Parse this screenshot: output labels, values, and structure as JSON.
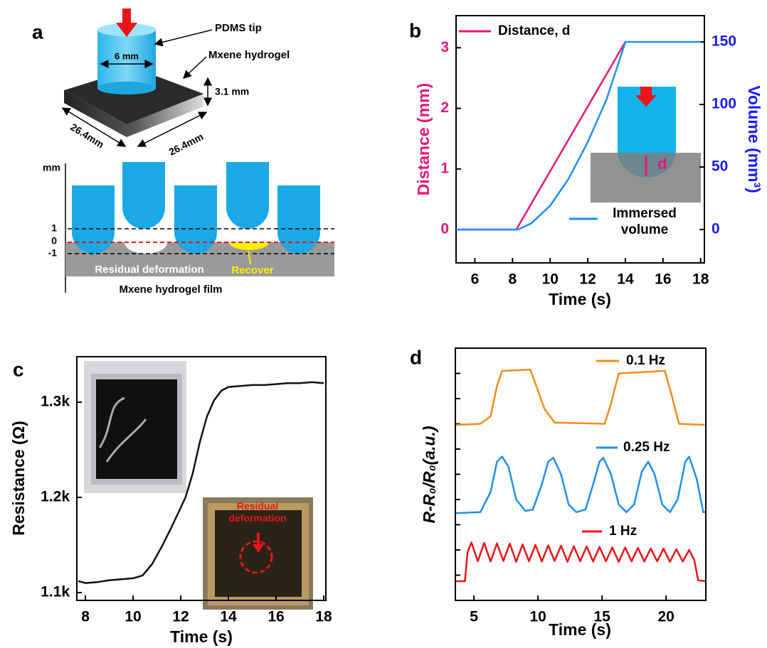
{
  "diagram": {
    "panel_label": "a",
    "tip_label": "PDMS tip",
    "hydrogel_label": "Mxene hydrogel",
    "tip_diameter": "6 mm",
    "thickness": "3.1 mm",
    "width": "26.4mm",
    "length": "26.4mm",
    "axis_unit": "mm",
    "levels": [
      1,
      0,
      -1
    ],
    "residual_label": "Residual deformation",
    "recover_label": "Recover",
    "film_label": "Mxene hydrogel film"
  },
  "chart_data": [
    {
      "type": "line",
      "panel_label": "b",
      "xlabel": "Time (s)",
      "ylabel": "Distance (mm)",
      "y2label": "Volume (mm³)",
      "ycolor": "#e6167a",
      "y2color": "#1a1aff",
      "inset_label": "d",
      "xlim": [
        5,
        18.2
      ],
      "xticks": [
        6,
        8,
        10,
        12,
        14,
        16,
        18
      ],
      "ylim": [
        -0.55,
        3.53
      ],
      "yticks": [
        0,
        1,
        2,
        3
      ],
      "y2lim": [
        -26.7,
        171
      ],
      "y2ticks": [
        0,
        50,
        100,
        150
      ],
      "series": [
        {
          "name": "Distance, d",
          "color": "#e6167a",
          "x": [
            5,
            8.2,
            14
          ],
          "values": [
            0,
            0,
            3.1
          ]
        },
        {
          "name": "Immersed volume",
          "color": "#1e8fef",
          "axis": "y2",
          "x": [
            5,
            8.3,
            9,
            10,
            11,
            12,
            13,
            14,
            18
          ],
          "values": [
            0,
            0,
            5,
            19,
            41,
            70,
            104,
            150,
            150
          ]
        }
      ]
    },
    {
      "type": "line",
      "panel_label": "c",
      "xlabel": "Time (s)",
      "ylabel": "Resistance (Ω)",
      "annotation": "Residual deformation",
      "color": "#111111",
      "xlim": [
        7.64,
        18.09
      ],
      "xticks": [
        8,
        10,
        12,
        14,
        16,
        18
      ],
      "ylim": [
        1091.8,
        1347.8
      ],
      "yticks": [
        {
          "value": 1100,
          "label": "1.1k"
        },
        {
          "value": 1200,
          "label": "1.2k"
        },
        {
          "value": 1300,
          "label": "1.3k"
        }
      ],
      "x": [
        7.7,
        8,
        8.5,
        9,
        9.5,
        10,
        10.4,
        10.8,
        11.2,
        11.6,
        11.9,
        12.2,
        12.5,
        12.8,
        13.1,
        13.4,
        13.7,
        14,
        14.5,
        15,
        15.5,
        16,
        16.5,
        17,
        17.5,
        18
      ],
      "values": [
        1112,
        1110,
        1111,
        1113,
        1114,
        1115,
        1118,
        1130,
        1148,
        1168,
        1184,
        1200,
        1225,
        1258,
        1285,
        1302,
        1312,
        1316,
        1317,
        1318,
        1318,
        1319,
        1320,
        1320,
        1321,
        1320
      ]
    },
    {
      "type": "line",
      "panel_label": "d",
      "xlabel": "Time (s)",
      "ylabel": "R-R₀/R₀(a.u.)",
      "xlim": [
        3.55,
        23.1
      ],
      "xticks": [
        5,
        10,
        15,
        20
      ],
      "ylim": [
        0,
        10
      ],
      "yticks": [
        1,
        2,
        3,
        4,
        5,
        6,
        7,
        8,
        9
      ],
      "ytick_labels": false,
      "series": [
        {
          "name": "0.1 Hz",
          "color": "#f28c1c",
          "x": [
            3.6,
            5.5,
            6.3,
            6.8,
            7.2,
            9.4,
            9.8,
            10.5,
            11.3,
            15.2,
            15.7,
            16.3,
            19.9,
            20.4,
            21,
            23
          ],
          "values": [
            6.96,
            7.0,
            7.3,
            8.5,
            9.1,
            9.15,
            8.6,
            7.6,
            7.05,
            7.0,
            7.8,
            9.0,
            9.1,
            8.2,
            7.0,
            6.96
          ]
        },
        {
          "name": "0.25 Hz",
          "color": "#1e8fef",
          "x": [
            3.6,
            5.5,
            6.3,
            6.8,
            7.2,
            7.7,
            8.3,
            9,
            9.6,
            10.3,
            10.8,
            11.2,
            11.8,
            12.4,
            13,
            13.7,
            14.3,
            14.8,
            15.1,
            15.7,
            16.3,
            16.9,
            17.5,
            18.1,
            18.6,
            19.1,
            19.7,
            20.3,
            20.9,
            21.5,
            21.8,
            22.4,
            22.9,
            23.05
          ],
          "values": [
            3.46,
            3.5,
            4.3,
            5.5,
            5.7,
            5.3,
            4.0,
            3.55,
            3.6,
            4.6,
            5.5,
            5.65,
            5.0,
            3.8,
            3.5,
            3.6,
            4.6,
            5.5,
            5.65,
            5.0,
            3.8,
            3.5,
            3.8,
            5.1,
            5.5,
            5.0,
            3.8,
            3.5,
            4.0,
            5.5,
            5.7,
            4.8,
            3.5,
            3.5
          ]
        },
        {
          "name": "1 Hz",
          "color": "#e8151b",
          "x": [
            3.6,
            4.3,
            4.5,
            4.8,
            5.3,
            5.8,
            6.3,
            6.8,
            7.3,
            7.8,
            8.3,
            8.8,
            9.3,
            9.8,
            10.3,
            10.8,
            11.3,
            11.8,
            12.3,
            12.8,
            13.3,
            13.8,
            14.3,
            14.8,
            15.3,
            15.8,
            16.3,
            16.8,
            17.3,
            17.8,
            18.3,
            18.8,
            19.3,
            19.8,
            20.3,
            20.8,
            21.3,
            21.8,
            22.2,
            22.5,
            23.05
          ],
          "values": [
            0.76,
            0.76,
            1.9,
            2.3,
            1.55,
            2.28,
            1.54,
            2.26,
            1.56,
            2.25,
            1.53,
            2.22,
            1.55,
            2.2,
            1.54,
            2.18,
            1.56,
            2.17,
            1.53,
            2.15,
            1.55,
            2.14,
            1.54,
            2.12,
            1.55,
            2.1,
            1.53,
            2.1,
            1.55,
            2.08,
            1.54,
            2.06,
            1.55,
            2.05,
            1.53,
            2.03,
            1.54,
            2.0,
            1.6,
            0.8,
            0.76
          ]
        }
      ]
    }
  ]
}
